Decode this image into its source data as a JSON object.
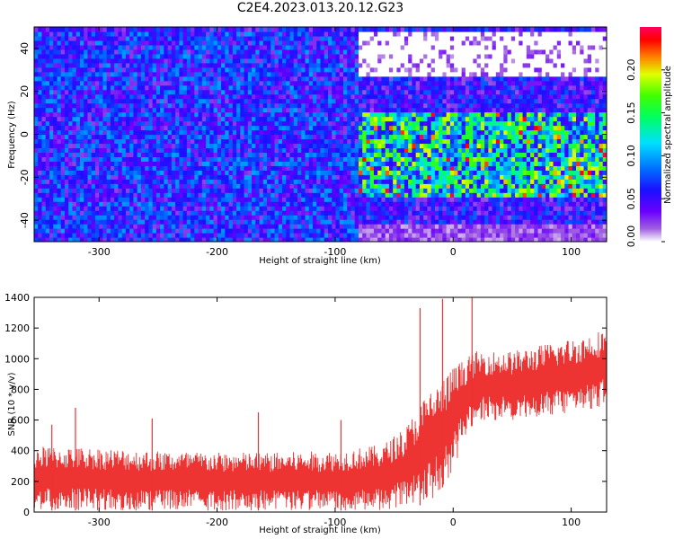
{
  "page": {
    "title": "C2E4.2023.013.20.12.G23"
  },
  "chart_data": [
    {
      "type": "heatmap",
      "title": "C2E4.2023.013.20.12.G23",
      "xlabel": "Height of straight line (km)",
      "ylabel": "Frequency (Hz)",
      "xlim": [
        -355,
        130
      ],
      "ylim": [
        -50,
        50
      ],
      "xticks": [
        -300,
        -200,
        -100,
        0,
        100
      ],
      "yticks": [
        -40,
        -20,
        0,
        20,
        40
      ],
      "colorbar": {
        "label": "Normalized spectral amplitude",
        "range": [
          0.0,
          0.25
        ],
        "ticks": [
          "0.00",
          "0.05",
          "0.10",
          "0.15",
          "0.20"
        ],
        "colormap": "rainbow (white-violet-blue-cyan-green-yellow-red-magenta)"
      },
      "features": [
        {
          "x_range": [
            -355,
            -80
          ],
          "y_range": [
            -50,
            48
          ],
          "amplitude": 0.06
        },
        {
          "x_range": [
            -80,
            130
          ],
          "y_range": [
            -30,
            10
          ],
          "amplitude": 0.12
        },
        {
          "x_range": [
            -80,
            130
          ],
          "y_range": [
            28,
            48
          ],
          "amplitude": 0.0
        },
        {
          "x_range": [
            -80,
            130
          ],
          "y_range": [
            -50,
            -42
          ],
          "amplitude": 0.02
        }
      ]
    },
    {
      "type": "line",
      "xlabel": "Height of straight line (km)",
      "ylabel": "SNR (10 * v/v)",
      "xlim": [
        -355,
        130
      ],
      "ylim": [
        0,
        1400
      ],
      "xticks": [
        -300,
        -200,
        -100,
        0,
        100
      ],
      "yticks": [
        0,
        200,
        400,
        600,
        800,
        1000,
        1200,
        1400
      ],
      "series": [
        {
          "color": "#ee3333",
          "envelope": [
            {
              "x": -355,
              "low": 10,
              "high": 430
            },
            {
              "x": -300,
              "low": 10,
              "high": 420
            },
            {
              "x": -250,
              "low": 10,
              "high": 400
            },
            {
              "x": -200,
              "low": 10,
              "high": 390
            },
            {
              "x": -150,
              "low": 10,
              "high": 390
            },
            {
              "x": -100,
              "low": 10,
              "high": 400
            },
            {
              "x": -60,
              "low": 10,
              "high": 440
            },
            {
              "x": -40,
              "low": 20,
              "high": 560
            },
            {
              "x": -20,
              "low": 60,
              "high": 800
            },
            {
              "x": -10,
              "low": 150,
              "high": 850
            },
            {
              "x": 0,
              "low": 260,
              "high": 950
            },
            {
              "x": 10,
              "low": 500,
              "high": 1000
            },
            {
              "x": 20,
              "low": 600,
              "high": 1050
            },
            {
              "x": 50,
              "low": 600,
              "high": 1050
            },
            {
              "x": 80,
              "low": 620,
              "high": 1100
            },
            {
              "x": 110,
              "low": 650,
              "high": 1150
            },
            {
              "x": 130,
              "low": 700,
              "high": 1200
            }
          ],
          "spikes": [
            {
              "x": -340,
              "value": 570
            },
            {
              "x": -320,
              "value": 680
            },
            {
              "x": -255,
              "value": 610
            },
            {
              "x": -165,
              "value": 650
            },
            {
              "x": -95,
              "value": 600
            },
            {
              "x": -28,
              "value": 1330
            },
            {
              "x": -9,
              "value": 1390
            },
            {
              "x": 16,
              "value": 1410
            }
          ]
        }
      ]
    }
  ]
}
